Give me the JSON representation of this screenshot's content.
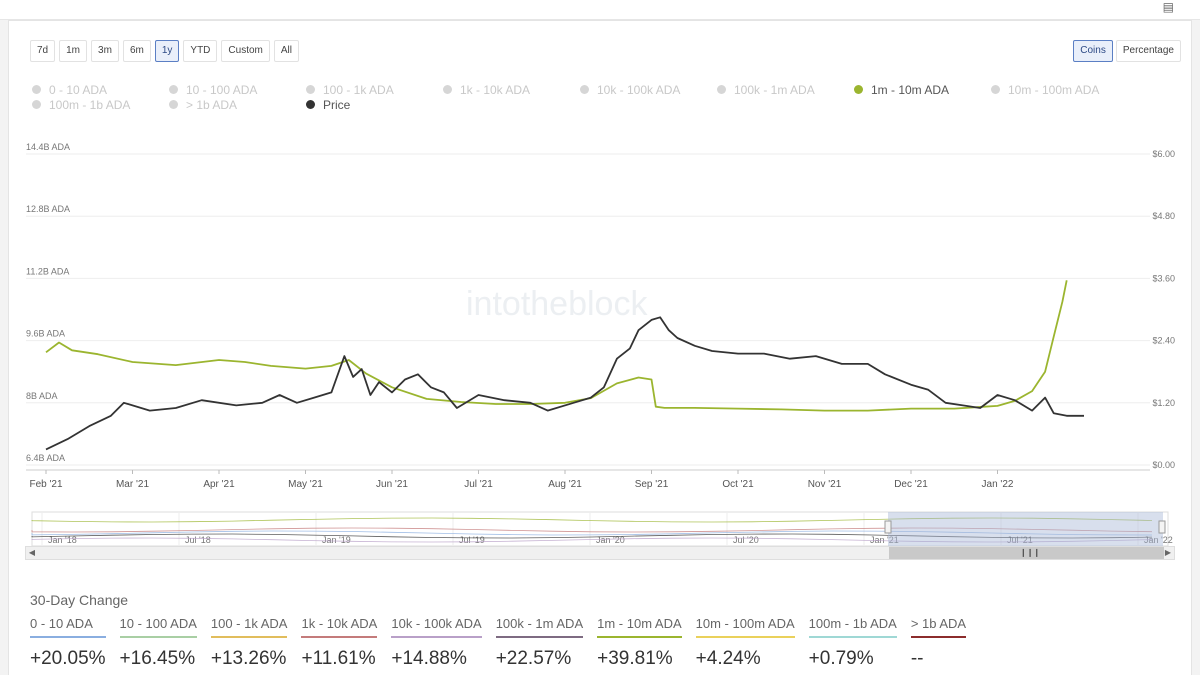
{
  "range_buttons": [
    {
      "label": "7d",
      "active": false
    },
    {
      "label": "1m",
      "active": false
    },
    {
      "label": "3m",
      "active": false
    },
    {
      "label": "6m",
      "active": false
    },
    {
      "label": "1y",
      "active": true
    },
    {
      "label": "YTD",
      "active": false
    },
    {
      "label": "Custom",
      "active": false
    },
    {
      "label": "All",
      "active": false
    }
  ],
  "mode_buttons": [
    {
      "label": "Coins",
      "active": true
    },
    {
      "label": "Percentage",
      "active": false
    }
  ],
  "legend": [
    {
      "label": "0 - 10 ADA",
      "on": false,
      "color": "#d6d6d6"
    },
    {
      "label": "10 - 100 ADA",
      "on": false,
      "color": "#d6d6d6"
    },
    {
      "label": "100 - 1k ADA",
      "on": false,
      "color": "#d6d6d6"
    },
    {
      "label": "1k - 10k ADA",
      "on": false,
      "color": "#d6d6d6"
    },
    {
      "label": "10k - 100k ADA",
      "on": false,
      "color": "#d6d6d6"
    },
    {
      "label": "100k - 1m ADA",
      "on": false,
      "color": "#d6d6d6"
    },
    {
      "label": "1m - 10m ADA",
      "on": true,
      "color": "#9bb52f"
    },
    {
      "label": "10m - 100m ADA",
      "on": false,
      "color": "#d6d6d6"
    },
    {
      "label": "100m - 1b ADA",
      "on": false,
      "color": "#d6d6d6"
    },
    {
      "label": "> 1b ADA",
      "on": false,
      "color": "#d6d6d6"
    },
    {
      "label": "Price",
      "on": true,
      "color": "#333333"
    }
  ],
  "watermark": "intotheblock",
  "navigator": {
    "labels": [
      "Jan '18",
      "Jul '18",
      "Jan '19",
      "Jul '19",
      "Jan '20",
      "Jul '20",
      "Jan '21",
      "Jul '21",
      "Jan '22"
    ]
  },
  "chart_data": {
    "type": "line",
    "x": [
      "Feb '21",
      "Mar '21",
      "Apr '21",
      "May '21",
      "Jun '21",
      "Jul '21",
      "Aug '21",
      "Sep '21",
      "Oct '21",
      "Nov '21",
      "Dec '21",
      "Jan '22"
    ],
    "left_axis": {
      "ticks": [
        "6.4B ADA",
        "8B ADA",
        "9.6B ADA",
        "11.2B ADA",
        "12.8B ADA",
        "14.4B ADA"
      ],
      "ylim": [
        6.4,
        14.4
      ],
      "unit": "B ADA"
    },
    "right_axis": {
      "ticks": [
        "$0.00",
        "$1.20",
        "$2.40",
        "$3.60",
        "$4.80",
        "$6.00"
      ],
      "ylim": [
        0,
        6
      ],
      "unit": "$"
    },
    "series": [
      {
        "name": "1m - 10m ADA",
        "axis": "left",
        "color": "#9bb52f",
        "points": [
          [
            0,
            9.3
          ],
          [
            0.15,
            9.55
          ],
          [
            0.3,
            9.35
          ],
          [
            0.6,
            9.25
          ],
          [
            1.0,
            9.05
          ],
          [
            1.5,
            8.97
          ],
          [
            2.0,
            9.1
          ],
          [
            2.3,
            9.05
          ],
          [
            2.6,
            8.95
          ],
          [
            3.0,
            8.88
          ],
          [
            3.3,
            8.95
          ],
          [
            3.5,
            9.1
          ],
          [
            3.7,
            8.75
          ],
          [
            4.0,
            8.4
          ],
          [
            4.4,
            8.1
          ],
          [
            4.8,
            8.02
          ],
          [
            5.2,
            7.97
          ],
          [
            5.6,
            7.97
          ],
          [
            6.0,
            8.0
          ],
          [
            6.3,
            8.12
          ],
          [
            6.6,
            8.5
          ],
          [
            6.85,
            8.65
          ],
          [
            7.0,
            8.6
          ],
          [
            7.05,
            7.9
          ],
          [
            7.15,
            7.87
          ],
          [
            7.5,
            7.87
          ],
          [
            8.0,
            7.85
          ],
          [
            8.5,
            7.83
          ],
          [
            9.0,
            7.8
          ],
          [
            9.5,
            7.8
          ],
          [
            10.0,
            7.85
          ],
          [
            10.5,
            7.85
          ],
          [
            10.85,
            7.9
          ],
          [
            11.0,
            7.92
          ],
          [
            11.2,
            8.05
          ],
          [
            11.4,
            8.3
          ],
          [
            11.55,
            8.8
          ],
          [
            11.65,
            9.7
          ],
          [
            11.75,
            10.6
          ],
          [
            11.8,
            11.15
          ]
        ]
      },
      {
        "name": "Price",
        "axis": "right",
        "color": "#333333",
        "points": [
          [
            0,
            0.3
          ],
          [
            0.25,
            0.5
          ],
          [
            0.5,
            0.75
          ],
          [
            0.75,
            0.95
          ],
          [
            0.9,
            1.2
          ],
          [
            1.2,
            1.05
          ],
          [
            1.5,
            1.1
          ],
          [
            1.8,
            1.25
          ],
          [
            2.2,
            1.15
          ],
          [
            2.5,
            1.2
          ],
          [
            2.7,
            1.35
          ],
          [
            2.9,
            1.2
          ],
          [
            3.1,
            1.3
          ],
          [
            3.3,
            1.4
          ],
          [
            3.45,
            2.1
          ],
          [
            3.55,
            1.7
          ],
          [
            3.65,
            1.85
          ],
          [
            3.75,
            1.35
          ],
          [
            3.85,
            1.6
          ],
          [
            4.0,
            1.4
          ],
          [
            4.15,
            1.65
          ],
          [
            4.3,
            1.75
          ],
          [
            4.45,
            1.5
          ],
          [
            4.6,
            1.4
          ],
          [
            4.75,
            1.1
          ],
          [
            5.0,
            1.35
          ],
          [
            5.3,
            1.25
          ],
          [
            5.6,
            1.2
          ],
          [
            5.8,
            1.05
          ],
          [
            6.1,
            1.2
          ],
          [
            6.3,
            1.3
          ],
          [
            6.45,
            1.5
          ],
          [
            6.6,
            2.05
          ],
          [
            6.75,
            2.25
          ],
          [
            6.85,
            2.6
          ],
          [
            7.0,
            2.8
          ],
          [
            7.1,
            2.85
          ],
          [
            7.2,
            2.6
          ],
          [
            7.3,
            2.45
          ],
          [
            7.5,
            2.3
          ],
          [
            7.7,
            2.2
          ],
          [
            8.0,
            2.15
          ],
          [
            8.3,
            2.15
          ],
          [
            8.6,
            2.05
          ],
          [
            8.9,
            2.1
          ],
          [
            9.2,
            1.95
          ],
          [
            9.5,
            1.95
          ],
          [
            9.7,
            1.75
          ],
          [
            10.0,
            1.55
          ],
          [
            10.2,
            1.45
          ],
          [
            10.4,
            1.2
          ],
          [
            10.6,
            1.15
          ],
          [
            10.8,
            1.1
          ],
          [
            11.0,
            1.35
          ],
          [
            11.2,
            1.25
          ],
          [
            11.4,
            1.05
          ],
          [
            11.55,
            1.3
          ],
          [
            11.65,
            1.0
          ],
          [
            11.8,
            0.95
          ],
          [
            12.0,
            0.95
          ]
        ]
      }
    ]
  },
  "change_title": "30-Day Change",
  "changes": [
    {
      "label": "0 - 10 ADA",
      "value": "+20.05%",
      "color": "#8aaee0"
    },
    {
      "label": "10 - 100 ADA",
      "value": "+16.45%",
      "color": "#a9cfa4"
    },
    {
      "label": "100 - 1k ADA",
      "value": "+13.26%",
      "color": "#e1bd5c"
    },
    {
      "label": "1k - 10k ADA",
      "value": "+11.61%",
      "color": "#c47b7b"
    },
    {
      "label": "10k - 100k ADA",
      "value": "+14.88%",
      "color": "#b9a0c8"
    },
    {
      "label": "100k - 1m ADA",
      "value": "+22.57%",
      "color": "#7e6b82"
    },
    {
      "label": "1m - 10m ADA",
      "value": "+39.81%",
      "color": "#9bb52f"
    },
    {
      "label": "10m - 100m ADA",
      "value": "+4.24%",
      "color": "#ead15b"
    },
    {
      "label": "100m - 1b ADA",
      "value": "+0.79%",
      "color": "#9fd8d5"
    },
    {
      "label": "> 1b ADA",
      "value": "--",
      "color": "#8c2c2c"
    }
  ]
}
